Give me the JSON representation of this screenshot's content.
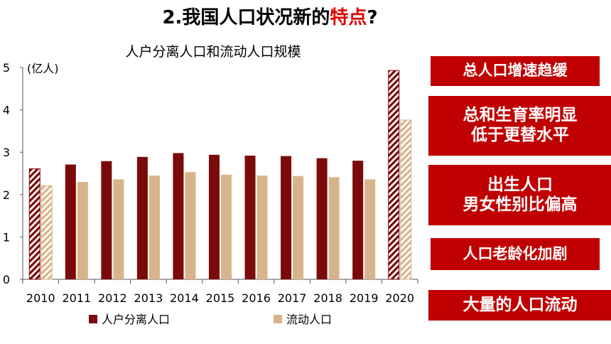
{
  "slide": {
    "title_prefix": "2.我国人口状况新的",
    "title_highlight": "特点",
    "title_suffix": "?"
  },
  "chart_data": {
    "type": "bar",
    "title": "人户分离人口和流动人口规模",
    "ylabel": "(亿人)",
    "categories": [
      "2010",
      "2011",
      "2012",
      "2013",
      "2014",
      "2015",
      "2016",
      "2017",
      "2018",
      "2019",
      "2020"
    ],
    "series": [
      {
        "name": "人户分离人口",
        "color": "#7b0a0a",
        "values": [
          2.61,
          2.71,
          2.79,
          2.89,
          2.98,
          2.94,
          2.92,
          2.91,
          2.86,
          2.8,
          4.93
        ]
      },
      {
        "name": "流动人口",
        "color": "#d8b48b",
        "values": [
          2.21,
          2.3,
          2.36,
          2.45,
          2.53,
          2.47,
          2.45,
          2.44,
          2.41,
          2.36,
          3.76
        ]
      }
    ],
    "hatched_categories": [
      "2010",
      "2020"
    ],
    "ylim": [
      0,
      5
    ],
    "yticks": [
      "0",
      "1",
      "2",
      "3",
      "4",
      "5"
    ],
    "grid": false,
    "legend_position": "bottom"
  },
  "tags": [
    {
      "lines": [
        "总人口增速趋缓"
      ]
    },
    {
      "lines": [
        "总和生育率明显",
        "低于更替水平"
      ]
    },
    {
      "lines": [
        "出生人口",
        "男女性别比偏高"
      ]
    },
    {
      "lines": [
        "人口老龄化加剧"
      ]
    },
    {
      "lines": [
        "大量的人口流动"
      ]
    }
  ]
}
